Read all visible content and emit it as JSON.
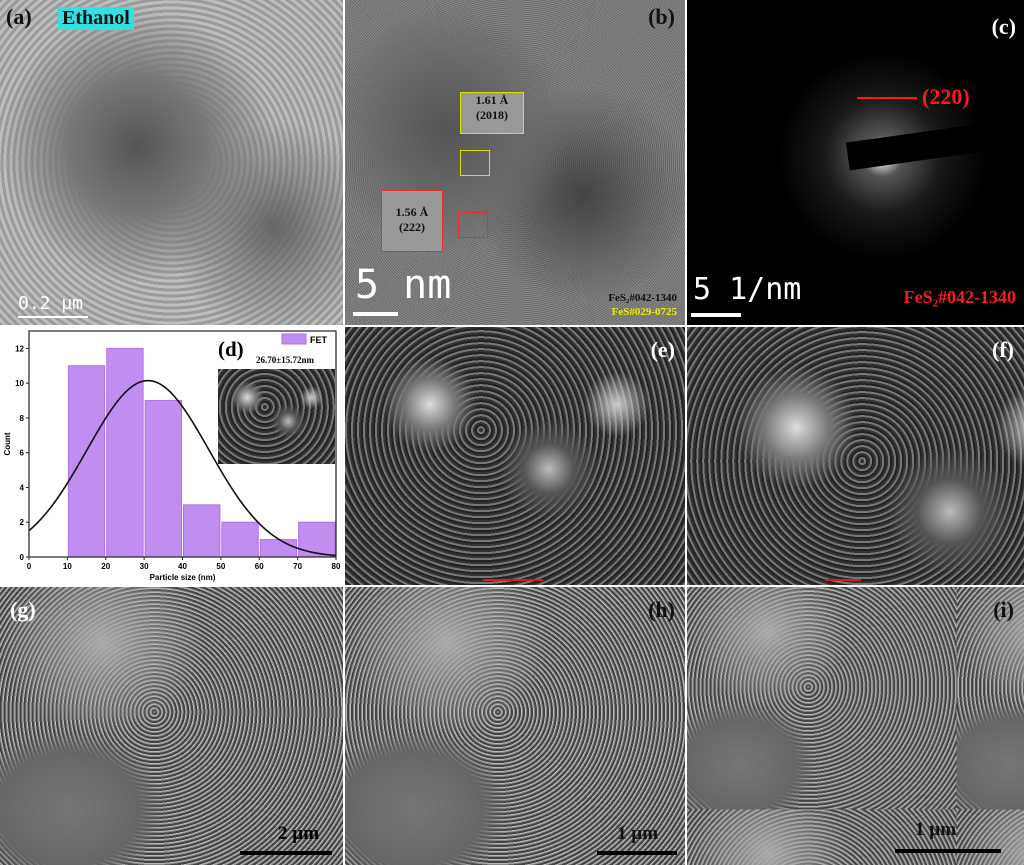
{
  "panels": {
    "a": {
      "label": "(a)",
      "tag": "Ethanol",
      "scale": "0.2 µm",
      "tag_color": "#33e0e0"
    },
    "b": {
      "label": "(b)",
      "scale": "5 nm",
      "d1": "1.61 Å",
      "h1": "(2018)",
      "d2": "1.56 Å",
      "h2": "(222)",
      "ref1": "FeS₂#042-1340",
      "ref2": "FeS#029-0725"
    },
    "c": {
      "label": "(c)",
      "plane": "(220)",
      "scale": "5 1/nm",
      "ref": "FeS₂#042-1340",
      "accent": "#ff1a1a"
    },
    "d": {
      "label": "(d)",
      "stat": "26.70±15.72nm"
    },
    "e": {
      "label": "(e)"
    },
    "f": {
      "label": "(f)"
    },
    "g": {
      "label": "(g)",
      "scale": "2 µm"
    },
    "h": {
      "label": "(h)",
      "scale": "1 µm"
    },
    "i": {
      "label": "(i)",
      "scale": "1 µm"
    }
  },
  "chart_data": {
    "type": "bar",
    "bins": [
      [
        10,
        20
      ],
      [
        20,
        30
      ],
      [
        30,
        40
      ],
      [
        40,
        50
      ],
      [
        50,
        60
      ],
      [
        60,
        70
      ],
      [
        70,
        80
      ]
    ],
    "values": [
      11,
      12,
      9,
      3,
      2,
      1,
      2
    ],
    "series": [
      {
        "name": "FET",
        "values": [
          11,
          12,
          9,
          3,
          2,
          1,
          2
        ],
        "color": "#c08ef0"
      }
    ],
    "fit": {
      "type": "gaussian",
      "center": 31,
      "peak": 10.15,
      "sigma": 15.9
    },
    "xlabel": "Particle size (nm)",
    "ylabel": "Count",
    "xlim": [
      0,
      80
    ],
    "ylim": [
      0,
      13
    ],
    "xticks": [
      0,
      10,
      20,
      30,
      40,
      50,
      60,
      70,
      80
    ],
    "yticks": [
      0,
      2,
      4,
      6,
      8,
      10,
      12
    ],
    "legend": "top-right"
  }
}
